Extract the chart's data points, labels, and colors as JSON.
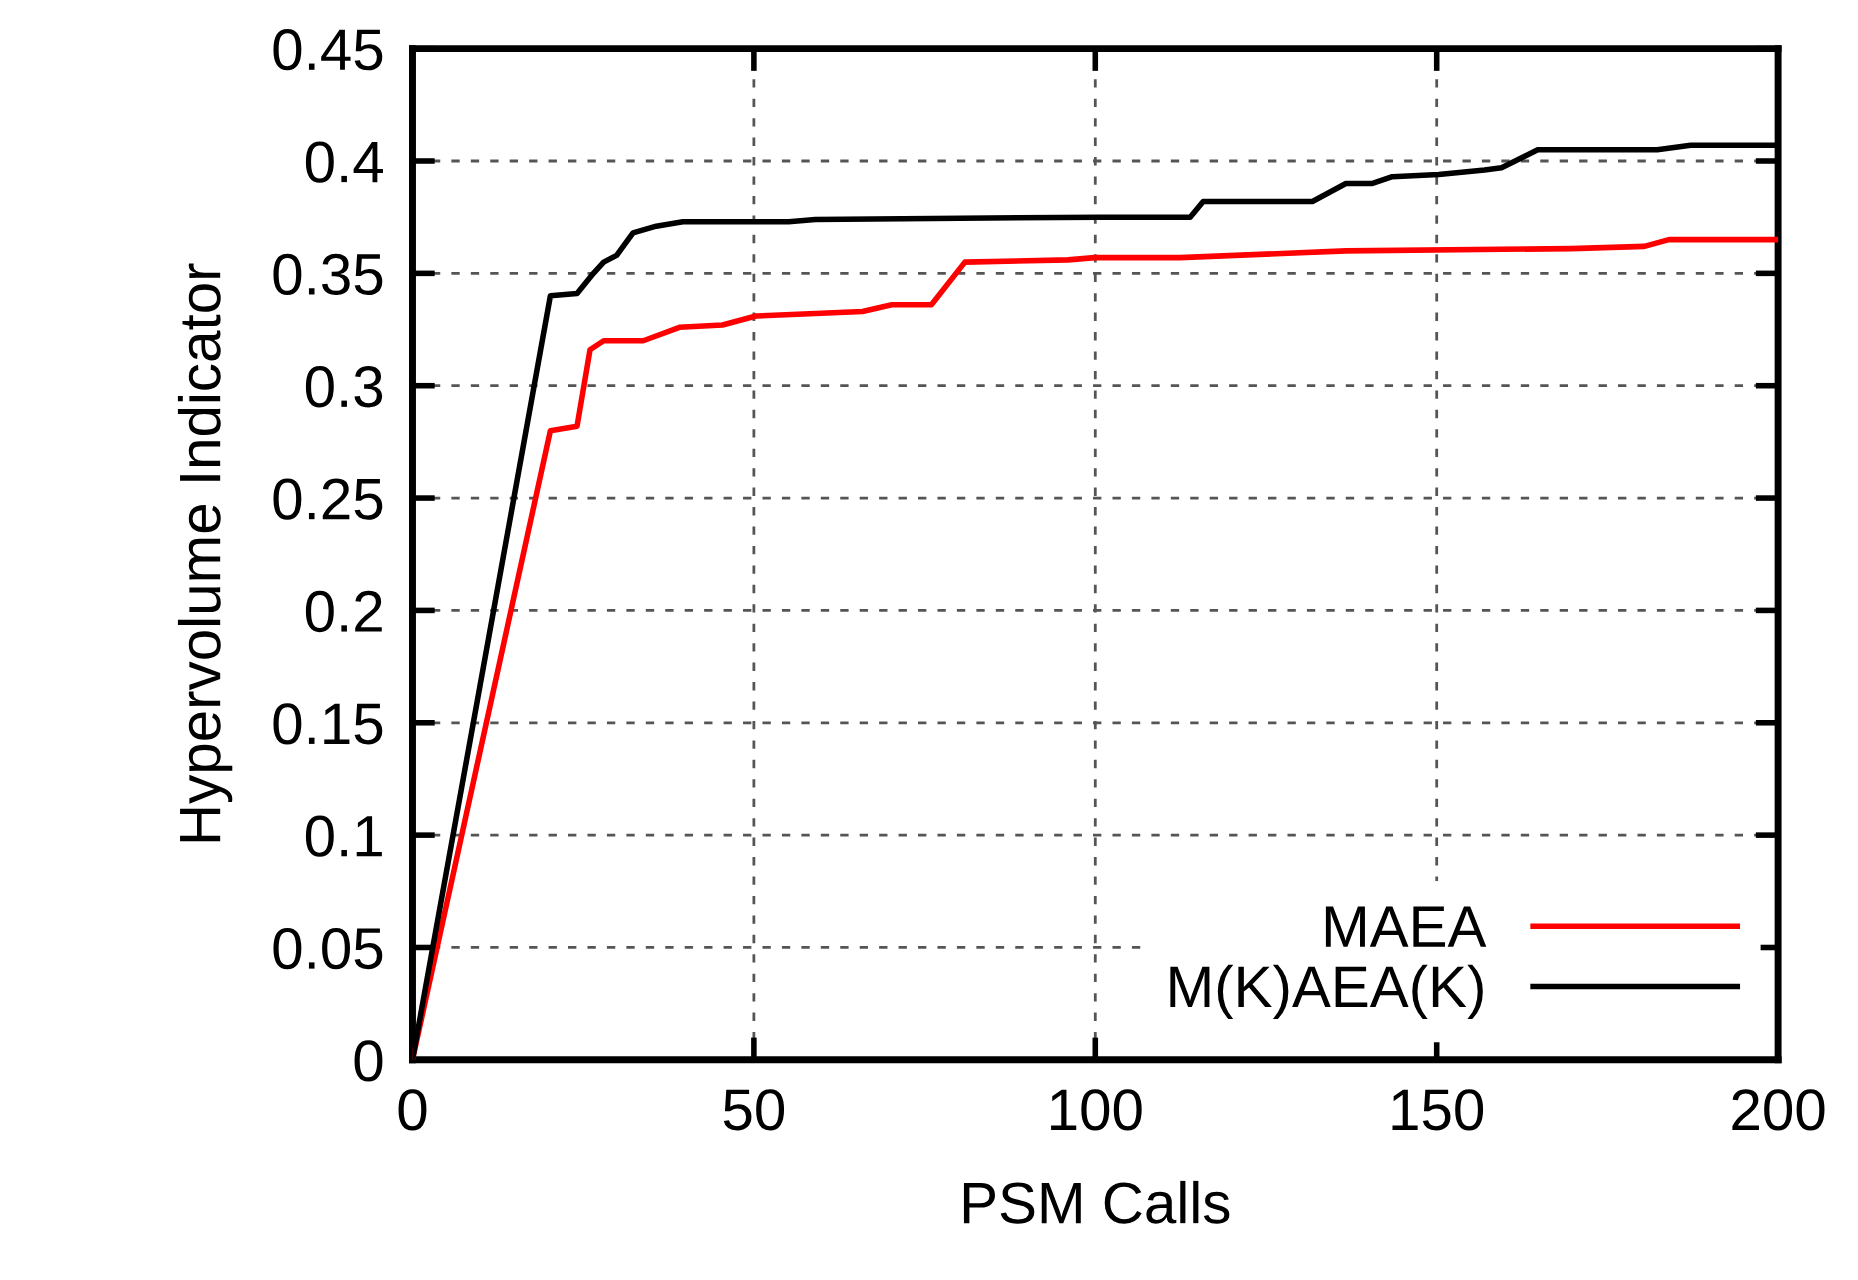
{
  "chart_data": {
    "type": "line",
    "xlabel": "PSM Calls",
    "ylabel": "Hypervolume Indicator",
    "xlim": [
      0,
      200
    ],
    "xticks": [
      0,
      50,
      100,
      150,
      200
    ],
    "ylim": [
      0,
      0.45
    ],
    "yticks": [
      0,
      0.05,
      0.1,
      0.15,
      0.2,
      0.25,
      0.3,
      0.35,
      0.4,
      0.45
    ],
    "grid": true,
    "legend": "bottom right",
    "line_style": "solid",
    "marker": "none",
    "series": [
      {
        "name": "MAEA",
        "color": "#ff0000",
        "x": [
          0,
          20.2,
          24.1,
          26,
          28,
          33.8,
          39.1,
          45.4,
          50.3,
          65.9,
          70.2,
          76,
          80.9,
          96,
          99.9,
          112.4,
          136.7,
          169.7,
          180.4,
          184,
          200
        ],
        "values": [
          0,
          0.28,
          0.282,
          0.316,
          0.32,
          0.32,
          0.326,
          0.327,
          0.331,
          0.333,
          0.336,
          0.336,
          0.355,
          0.356,
          0.357,
          0.357,
          0.36,
          0.361,
          0.362,
          0.365,
          0.365
        ]
      },
      {
        "name": "M(K)AEA(K)",
        "color": "#000000",
        "x": [
          0,
          20.2,
          24.1,
          26.5,
          28,
          29.9,
          32.3,
          35.7,
          39.6,
          55.1,
          59,
          100.8,
          113.9,
          115.8,
          131.8,
          136.7,
          140.6,
          143.5,
          150.3,
          157,
          159.5,
          164.8,
          182.3,
          187.2,
          200
        ],
        "values": [
          0,
          0.34,
          0.341,
          0.35,
          0.355,
          0.358,
          0.368,
          0.371,
          0.373,
          0.373,
          0.374,
          0.375,
          0.375,
          0.382,
          0.382,
          0.39,
          0.39,
          0.393,
          0.394,
          0.396,
          0.397,
          0.405,
          0.405,
          0.407,
          0.407
        ]
      }
    ]
  }
}
